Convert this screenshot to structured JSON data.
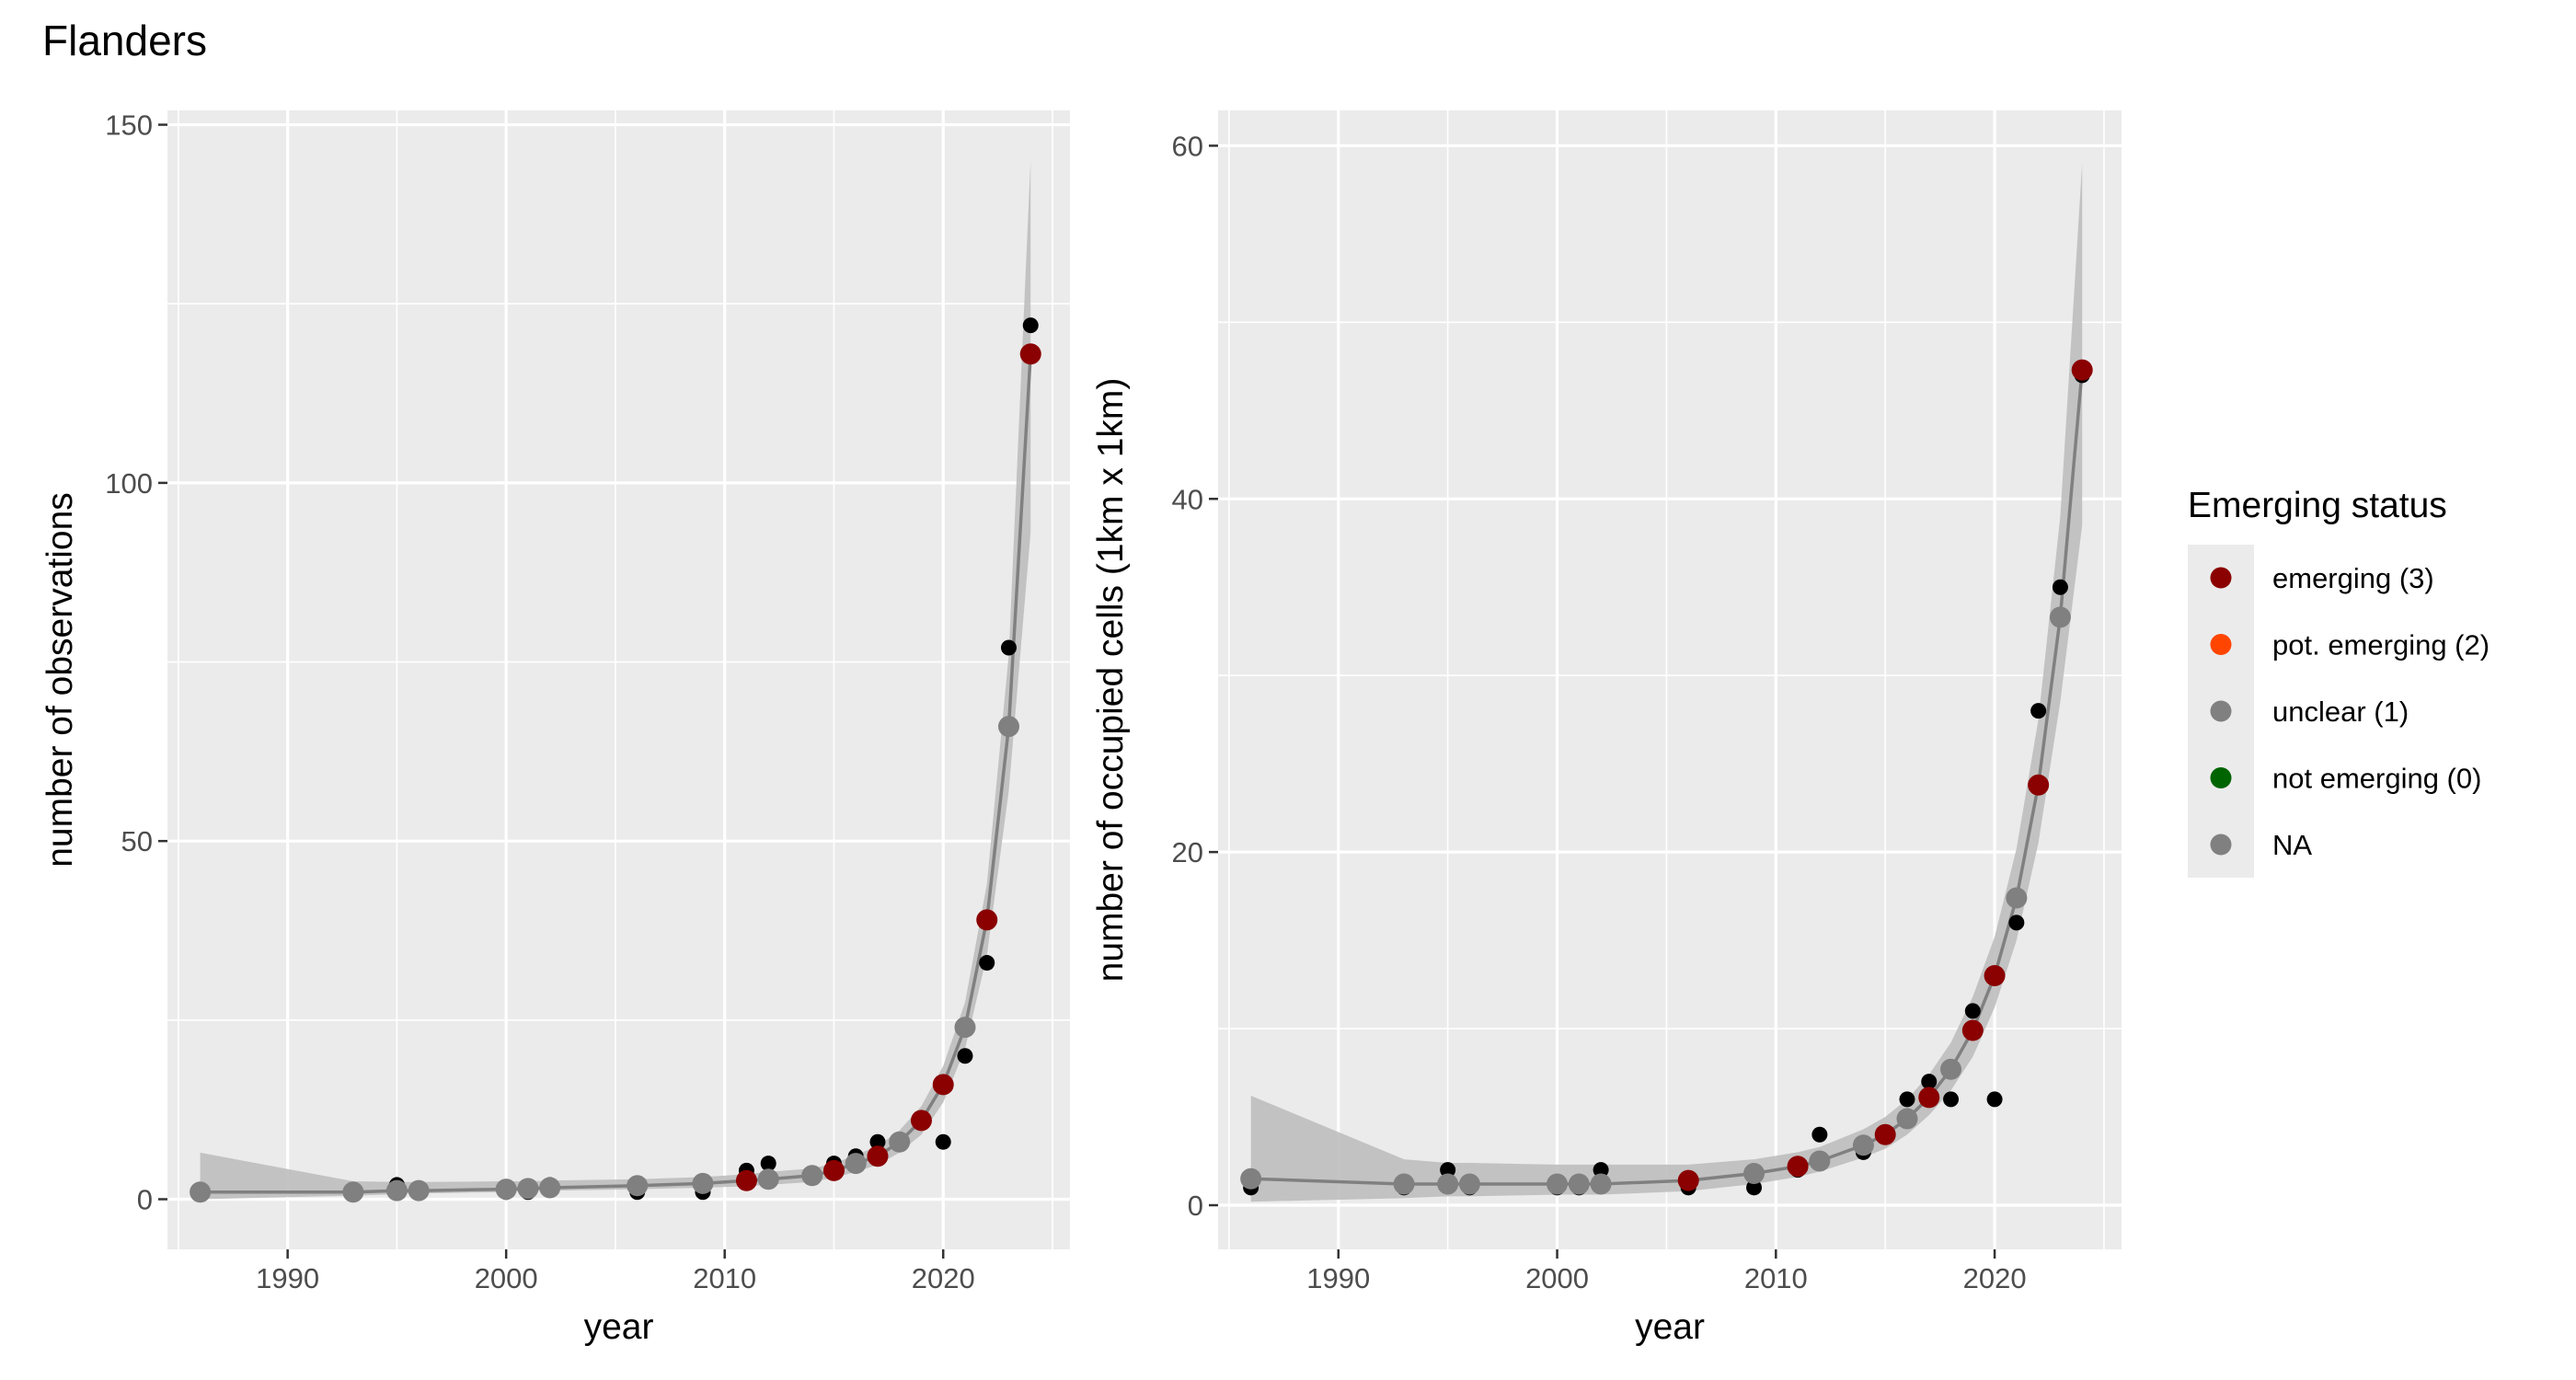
{
  "figure": {
    "title": "Flanders"
  },
  "colors": {
    "panel_bg": "#EBEBEB",
    "grid": "#FFFFFF",
    "ribbon": "#BEBEBE",
    "trend_line": "#808080",
    "raw_points": "#000000",
    "emerging": "#8B0000",
    "pot_emerging": "#FF4500",
    "unclear": "#808080",
    "not_emerging": "#006400",
    "na": "#808080"
  },
  "legend": {
    "title": "Emerging status",
    "items": [
      {
        "label": "emerging (3)",
        "color": "#8B0000"
      },
      {
        "label": "pot. emerging (2)",
        "color": "#FF4500"
      },
      {
        "label": "unclear (1)",
        "color": "#808080"
      },
      {
        "label": "not emerging (0)",
        "color": "#006400"
      },
      {
        "label": "NA",
        "color": "#808080"
      }
    ]
  },
  "chart_data": [
    {
      "type": "scatter",
      "title": "",
      "xlabel": "year",
      "ylabel": "number of observations",
      "xlim": [
        1984.5,
        2025.8
      ],
      "ylim": [
        -7,
        152
      ],
      "xticks": [
        1990,
        2000,
        2010,
        2020
      ],
      "yticks": [
        0,
        50,
        100,
        150
      ],
      "grid": true,
      "observed": {
        "x": [
          1986,
          1993,
          1995,
          1996,
          2000,
          2001,
          2002,
          2006,
          2009,
          2011,
          2012,
          2014,
          2015,
          2016,
          2017,
          2018,
          2019,
          2020,
          2021,
          2022,
          2023,
          2024
        ],
        "y": [
          1,
          1,
          2,
          1,
          1,
          1,
          2,
          1,
          1,
          4,
          5,
          3,
          5,
          6,
          8,
          8,
          11,
          8,
          20,
          33,
          77,
          122
        ]
      },
      "trend": {
        "x": [
          1986,
          1993,
          1995,
          1996,
          2000,
          2001,
          2002,
          2006,
          2009,
          2011,
          2012,
          2014,
          2015,
          2016,
          2017,
          2018,
          2019,
          2020,
          2021,
          2022,
          2023,
          2024
        ],
        "y": [
          1,
          1,
          1.2,
          1.2,
          1.4,
          1.5,
          1.6,
          1.9,
          2.2,
          2.6,
          2.8,
          3.3,
          4,
          5,
          6,
          8,
          11,
          16,
          24,
          39,
          66,
          118
        ],
        "lower": [
          0,
          0.5,
          0.7,
          0.8,
          1,
          1.1,
          1.2,
          1.4,
          1.6,
          1.8,
          2,
          2.4,
          3,
          3.8,
          4.8,
          6.5,
          9,
          13.5,
          21,
          34,
          57,
          93
        ],
        "upper": [
          6.5,
          2.5,
          2.4,
          2.4,
          2.5,
          2.5,
          2.6,
          2.8,
          3.1,
          3.5,
          3.8,
          4.3,
          5,
          6.2,
          7.4,
          9.6,
          13,
          18.6,
          27.5,
          44,
          76,
          145
        ],
        "status": [
          "unclear",
          "unclear",
          "unclear",
          "unclear",
          "unclear",
          "unclear",
          "unclear",
          "unclear",
          "unclear",
          "emerging",
          "unclear",
          "unclear",
          "emerging",
          "unclear",
          "emerging",
          "unclear",
          "emerging",
          "emerging",
          "unclear",
          "emerging",
          "unclear",
          "emerging"
        ]
      }
    },
    {
      "type": "scatter",
      "title": "",
      "xlabel": "year",
      "ylabel": "number of occupied cells (1km x 1km)",
      "xlim": [
        1984.5,
        2025.8
      ],
      "ylim": [
        -2.5,
        62
      ],
      "xticks": [
        1990,
        2000,
        2010,
        2020
      ],
      "yticks": [
        0,
        20,
        40,
        60
      ],
      "grid": true,
      "observed": {
        "x": [
          1986,
          1993,
          1995,
          1996,
          2000,
          2001,
          2002,
          2006,
          2009,
          2011,
          2012,
          2014,
          2015,
          2016,
          2017,
          2018,
          2019,
          2020,
          2021,
          2022,
          2023,
          2024
        ],
        "y": [
          1,
          1,
          2,
          1,
          1,
          1,
          2,
          1,
          1,
          2,
          4,
          3,
          4,
          6,
          7,
          6,
          11,
          6,
          16,
          28,
          35,
          47
        ]
      },
      "trend": {
        "x": [
          1986,
          1993,
          1995,
          1996,
          2000,
          2001,
          2002,
          2006,
          2009,
          2011,
          2012,
          2014,
          2015,
          2016,
          2017,
          2018,
          2019,
          2020,
          2021,
          2022,
          2023,
          2024
        ],
        "y": [
          1.5,
          1.2,
          1.2,
          1.2,
          1.2,
          1.2,
          1.2,
          1.4,
          1.8,
          2.2,
          2.5,
          3.4,
          4,
          4.9,
          6.1,
          7.7,
          9.9,
          13,
          17.4,
          23.8,
          33.3,
          47.3
        ],
        "lower": [
          0.2,
          0.4,
          0.5,
          0.5,
          0.6,
          0.6,
          0.6,
          0.8,
          1.2,
          1.6,
          1.9,
          2.7,
          3.2,
          4,
          5.1,
          6.5,
          8.4,
          11.2,
          15,
          20.5,
          28.5,
          38.5
        ],
        "upper": [
          6.2,
          2.6,
          2.4,
          2.4,
          2.3,
          2.3,
          2.3,
          2.3,
          2.6,
          3,
          3.3,
          4.3,
          5,
          6,
          7.4,
          9.2,
          11.8,
          15.2,
          20.2,
          27.5,
          39,
          59
        ],
        "status": [
          "unclear",
          "unclear",
          "unclear",
          "unclear",
          "unclear",
          "unclear",
          "unclear",
          "emerging",
          "unclear",
          "emerging",
          "unclear",
          "unclear",
          "emerging",
          "unclear",
          "emerging",
          "unclear",
          "emerging",
          "emerging",
          "unclear",
          "emerging",
          "unclear",
          "emerging"
        ]
      }
    }
  ]
}
